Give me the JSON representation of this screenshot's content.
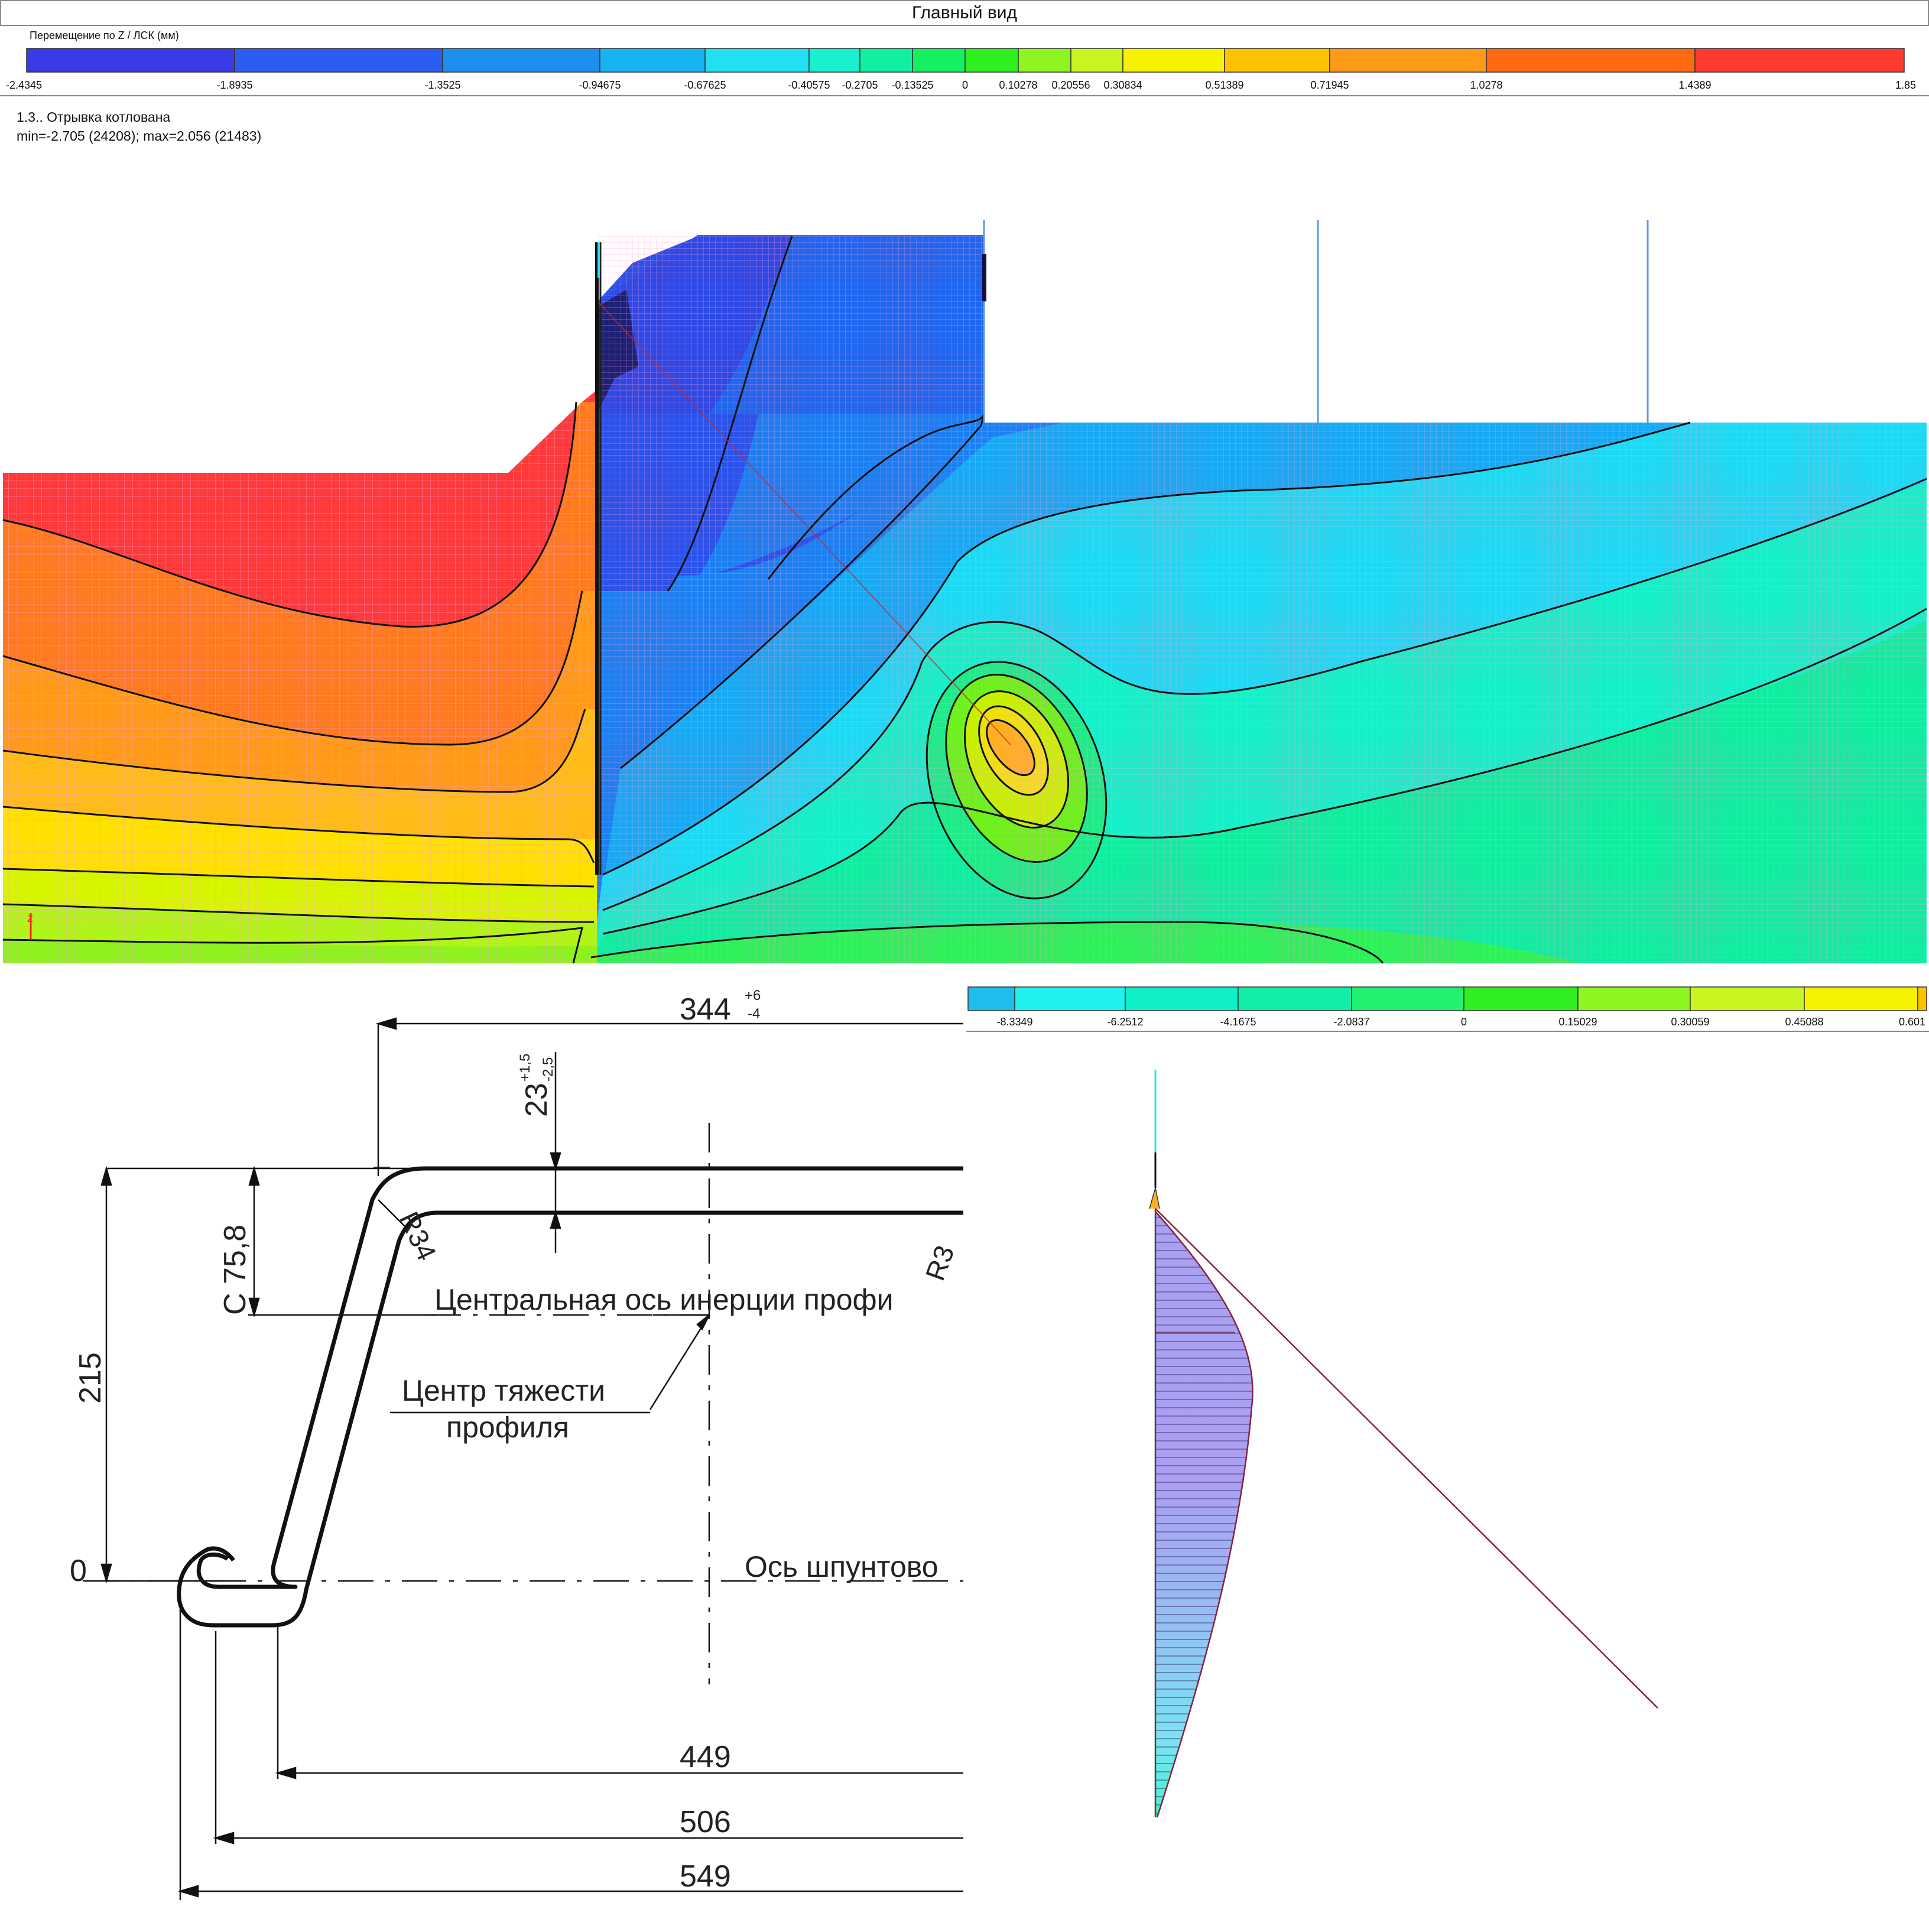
{
  "window": {
    "title": "Главный вид"
  },
  "legend_top": {
    "caption": "Перемещение по Z / ЛСК (мм)",
    "ticks": [
      "-2.4345",
      "-1.8935",
      "-1.3525",
      "-0.94675",
      "-0.67625",
      "-0.40575",
      "-0.2705",
      "-0.13525",
      "0",
      "0.10278",
      "0.20556",
      "0.30834",
      "0.51389",
      "0.71945",
      "1.0278",
      "1.4389",
      "1.85"
    ],
    "colors": [
      "#3a3ae6",
      "#2a5df0",
      "#1e8ff0",
      "#18b3f2",
      "#22e0f2",
      "#18f0cf",
      "#10f0a0",
      "#14f060",
      "#30ef20",
      "#8ff520",
      "#c8f520",
      "#f7f200",
      "#ffc200",
      "#ff9a18",
      "#ff6a10",
      "#ff3a30"
    ]
  },
  "result": {
    "case": "1.3.. Отрывка котлована",
    "minmax": "min=-2.705 (24208); max=2.056 (21483)"
  },
  "axis_marker": "Z",
  "legend_bottom": {
    "ticks": [
      "-8.3349",
      "-6.2512",
      "-4.1675",
      "-2.0837",
      "0",
      "0.15029",
      "0.30059",
      "0.45088",
      "0.601"
    ],
    "colors": [
      "#1fbcf0",
      "#20f0ee",
      "#10f0c8",
      "#12eea8",
      "#22f070",
      "#30ef20",
      "#8ff520",
      "#c8f520",
      "#f7f200"
    ]
  },
  "profile": {
    "width_top": "344",
    "width_top_tol_plus": "+6",
    "width_top_tol_minus": "-4",
    "thickness": "23",
    "thickness_tol_plus": "+1,5",
    "thickness_tol_minus": "-2,5",
    "c_dim": "C 75,8",
    "radius_inner": "R34",
    "radius_outer": "R3",
    "height": "215",
    "zero": "0",
    "inertia_axis": "Центральная ось инерции профи",
    "centroid_line1": "Центр тяжести",
    "centroid_line2": "профиля",
    "sheet_axis": "Ось шпунтово",
    "dim_449": "449",
    "dim_506": "506",
    "dim_549": "549"
  }
}
